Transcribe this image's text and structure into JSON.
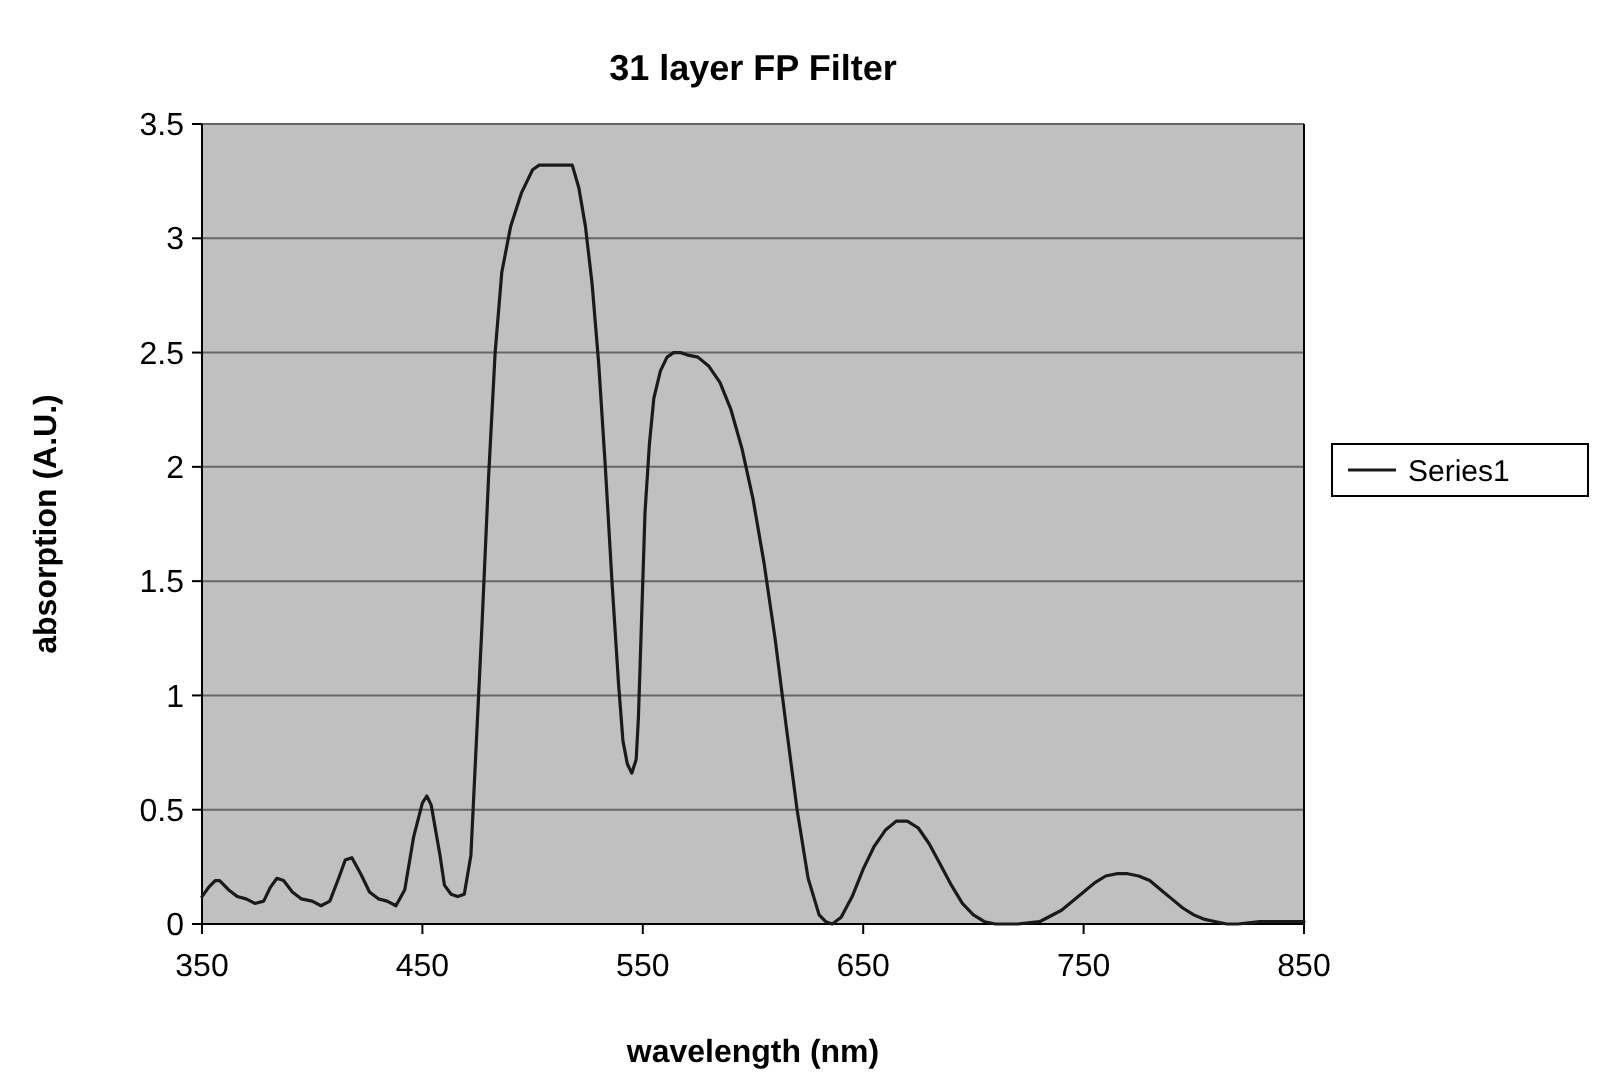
{
  "chart_data": {
    "type": "line",
    "title": "31 layer FP Filter",
    "xlabel": "wavelength (nm)",
    "ylabel": "absorption (A.U.)",
    "xlim": [
      350,
      850
    ],
    "xticks": [
      350,
      450,
      550,
      650,
      750,
      850
    ],
    "ylim": [
      0,
      3.5
    ],
    "yticks": [
      0,
      0.5,
      1,
      1.5,
      2,
      2.5,
      3,
      3.5
    ],
    "grid": "y",
    "legend": "right",
    "marker": "none",
    "line_style": "solid",
    "series": [
      {
        "name": "Series1",
        "color": "#1a1a1a",
        "x": [
          350,
          353,
          356,
          358,
          362,
          366,
          370,
          374,
          378,
          381,
          384,
          387,
          391,
          395,
          400,
          404,
          408,
          412,
          415,
          418,
          422,
          426,
          430,
          434,
          438,
          442,
          446,
          450,
          452,
          454,
          458,
          460,
          463,
          466,
          469,
          472,
          474,
          477,
          480,
          483,
          486,
          490,
          495,
          500,
          503,
          506,
          510,
          514,
          518,
          521,
          524,
          527,
          530,
          533,
          536,
          539,
          541,
          543,
          545,
          547,
          548,
          549,
          550,
          551,
          553,
          555,
          558,
          561,
          564,
          567,
          570,
          575,
          580,
          585,
          590,
          595,
          600,
          605,
          610,
          615,
          620,
          625,
          630,
          633,
          636,
          640,
          645,
          650,
          655,
          660,
          665,
          670,
          675,
          680,
          685,
          690,
          695,
          700,
          705,
          710,
          720,
          730,
          740,
          750,
          755,
          760,
          765,
          770,
          775,
          780,
          785,
          790,
          795,
          800,
          805,
          810,
          815,
          820,
          830,
          840,
          850
        ],
        "values": [
          0.12,
          0.16,
          0.19,
          0.19,
          0.15,
          0.12,
          0.11,
          0.09,
          0.1,
          0.16,
          0.2,
          0.19,
          0.14,
          0.11,
          0.1,
          0.08,
          0.1,
          0.2,
          0.28,
          0.29,
          0.22,
          0.14,
          0.11,
          0.1,
          0.08,
          0.15,
          0.38,
          0.53,
          0.56,
          0.52,
          0.3,
          0.17,
          0.13,
          0.12,
          0.13,
          0.3,
          0.7,
          1.3,
          1.95,
          2.5,
          2.85,
          3.05,
          3.2,
          3.3,
          3.32,
          3.32,
          3.32,
          3.32,
          3.32,
          3.22,
          3.05,
          2.8,
          2.45,
          2.0,
          1.5,
          1.05,
          0.8,
          0.7,
          0.66,
          0.72,
          0.9,
          1.2,
          1.5,
          1.8,
          2.1,
          2.3,
          2.42,
          2.48,
          2.5,
          2.5,
          2.49,
          2.48,
          2.44,
          2.37,
          2.25,
          2.08,
          1.86,
          1.58,
          1.25,
          0.87,
          0.5,
          0.2,
          0.04,
          0.01,
          0.0,
          0.03,
          0.12,
          0.24,
          0.34,
          0.41,
          0.45,
          0.45,
          0.42,
          0.35,
          0.26,
          0.17,
          0.09,
          0.04,
          0.01,
          0.0,
          0.0,
          0.01,
          0.06,
          0.14,
          0.18,
          0.21,
          0.22,
          0.22,
          0.21,
          0.19,
          0.15,
          0.11,
          0.07,
          0.04,
          0.02,
          0.01,
          0.0,
          0.0,
          0.01,
          0.01,
          0.01
        ]
      }
    ]
  }
}
